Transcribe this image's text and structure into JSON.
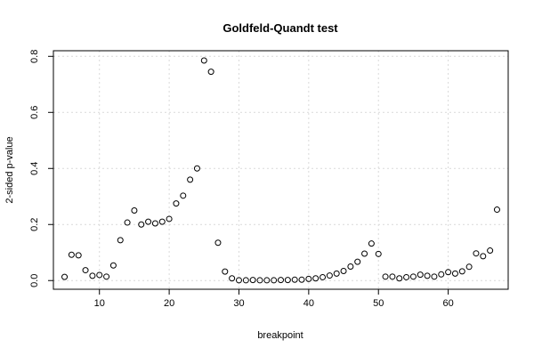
{
  "chart_data": {
    "type": "scatter",
    "title": "Goldfeld-Quandt test",
    "xlabel": "breakpoint",
    "ylabel": "2-sided p-value",
    "xlim": [
      3.4,
      68.6
    ],
    "ylim": [
      -0.031,
      0.82
    ],
    "x_ticks": [
      10,
      20,
      30,
      40,
      50,
      60
    ],
    "y_ticks": [
      0.0,
      0.2,
      0.4,
      0.6,
      0.8
    ],
    "x_tick_labels": [
      "10",
      "20",
      "30",
      "40",
      "50",
      "60"
    ],
    "y_tick_labels": [
      "0.0",
      "0.2",
      "0.4",
      "0.6",
      "0.8"
    ],
    "grid": true,
    "marker": "open-circle",
    "x": [
      5,
      6,
      7,
      8,
      9,
      10,
      11,
      12,
      13,
      14,
      15,
      16,
      17,
      18,
      19,
      20,
      21,
      22,
      23,
      24,
      25,
      26,
      27,
      28,
      29,
      30,
      31,
      32,
      33,
      34,
      35,
      36,
      37,
      38,
      39,
      40,
      41,
      42,
      43,
      44,
      45,
      46,
      47,
      48,
      49,
      50,
      51,
      52,
      53,
      54,
      55,
      56,
      57,
      58,
      59,
      60,
      61,
      62,
      63,
      64,
      65,
      66,
      67
    ],
    "y": [
      0.013,
      0.092,
      0.09,
      0.037,
      0.017,
      0.02,
      0.014,
      0.054,
      0.144,
      0.207,
      0.25,
      0.2,
      0.21,
      0.204,
      0.21,
      0.22,
      0.275,
      0.303,
      0.36,
      0.4,
      0.785,
      0.745,
      0.135,
      0.032,
      0.008,
      0.001,
      0.001,
      0.002,
      0.001,
      0.001,
      0.001,
      0.002,
      0.002,
      0.003,
      0.003,
      0.006,
      0.008,
      0.012,
      0.018,
      0.025,
      0.034,
      0.05,
      0.067,
      0.096,
      0.132,
      0.095,
      0.014,
      0.014,
      0.008,
      0.012,
      0.014,
      0.021,
      0.017,
      0.014,
      0.022,
      0.03,
      0.025,
      0.033,
      0.049,
      0.097,
      0.087,
      0.107,
      0.253
    ]
  }
}
